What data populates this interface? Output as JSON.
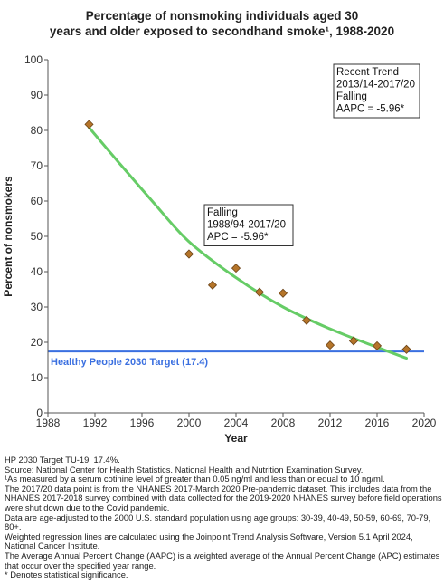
{
  "title_lines": [
    "Percentage of nonsmoking individuals aged 30",
    "years and older exposed to secondhand smoke¹, 1988-2020"
  ],
  "chart_data": {
    "type": "scatter",
    "title": "Percentage of nonsmoking individuals aged 30 years and older exposed to secondhand smoke¹, 1988-2020",
    "xlabel": "Year",
    "ylabel": "Percent of nonsmokers",
    "xlim": [
      1988,
      2020
    ],
    "ylim": [
      0,
      100
    ],
    "xticks": [
      1988,
      1992,
      1996,
      2000,
      2004,
      2008,
      2012,
      2016,
      2020
    ],
    "yticks": [
      0,
      10,
      20,
      30,
      40,
      50,
      60,
      70,
      80,
      90,
      100
    ],
    "grid": false,
    "points": [
      {
        "x": 1991.5,
        "y": 81.7
      },
      {
        "x": 2000,
        "y": 45.0
      },
      {
        "x": 2002,
        "y": 36.2
      },
      {
        "x": 2004,
        "y": 41.0
      },
      {
        "x": 2006,
        "y": 34.2
      },
      {
        "x": 2008,
        "y": 33.9
      },
      {
        "x": 2010,
        "y": 26.2
      },
      {
        "x": 2012,
        "y": 19.2
      },
      {
        "x": 2014,
        "y": 20.4
      },
      {
        "x": 2016,
        "y": 19.0
      },
      {
        "x": 2018.5,
        "y": 18.0
      }
    ],
    "trend": {
      "x": [
        1991.5,
        1994,
        1997,
        2000,
        2004,
        2008,
        2012,
        2016,
        2018.5
      ],
      "y": [
        80.8,
        71.0,
        59.5,
        48.5,
        38.3,
        30.0,
        23.8,
        18.6,
        15.5
      ]
    },
    "target": {
      "label": "Healthy People 2030 Target (17.4)",
      "value": 17.4
    },
    "annotations": [
      {
        "lines": [
          "Recent Trend",
          "2013/14-2017/20",
          "Falling",
          "AAPC = -5.96*"
        ]
      },
      {
        "lines": [
          "Falling",
          "1988/94-2017/20",
          "APC = -5.96*"
        ]
      }
    ],
    "colors": {
      "points": "#b5752a",
      "points_stroke": "#6b4317",
      "trend": "#66cc66",
      "target": "#3a6fe0",
      "axis": "#555555"
    }
  },
  "footnotes": [
    "HP 2030 Target TU-19: 17.4%.",
    "Source: National Center for Health Statistics. National Health and Nutrition Examination Survey.",
    "¹As measured by a serum cotinine level of greater than 0.05 ng/ml and less than or equal to 10 ng/ml.",
    "The 2017/20 data point is from the NHANES 2017-March 2020 Pre-pandemic dataset. This includes data from the NHANES 2017-2018 survey combined with data collected for the 2019-2020 NHANES survey before field operations were shut down due to the Covid pandemic.",
    "Data are age-adjusted to the 2000 U.S. standard population using age groups: 30-39, 40-49, 50-59, 60-69, 70-79, 80+.",
    "Weighted regression lines are calculated using the Joinpoint Trend Analysis Software, Version 5.1 April 2024, National Cancer Institute.",
    "The Average Annual Percent Change (AAPC) is a weighted average of the Annual Percent Change (APC) estimates that occur over the specified year range.",
    "* Denotes statistical significance."
  ]
}
